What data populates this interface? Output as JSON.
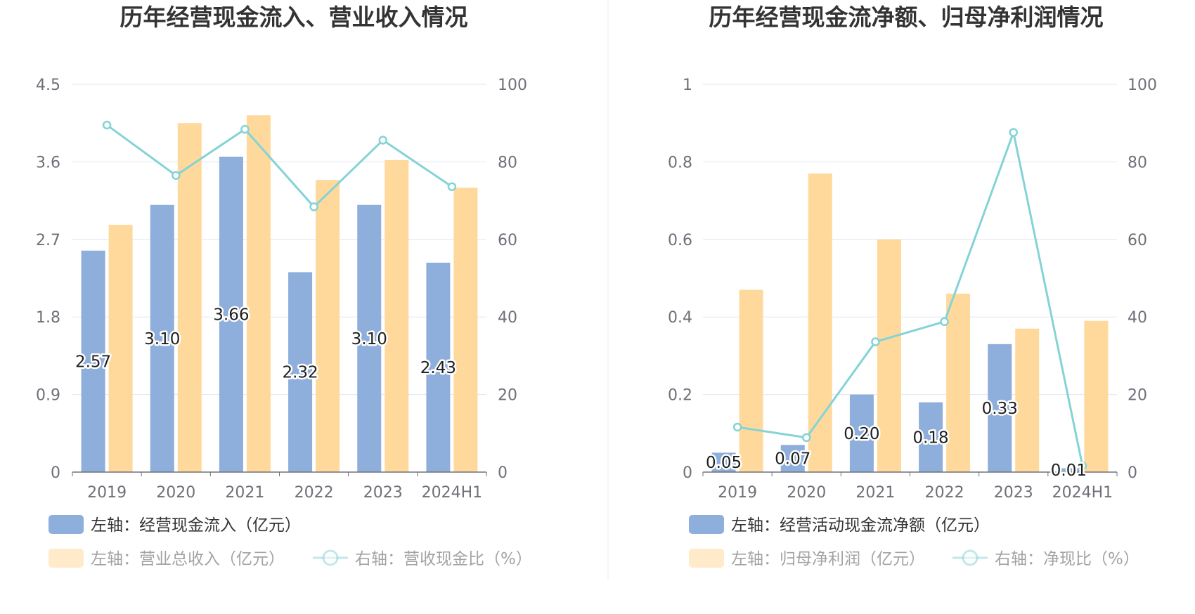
{
  "colors": {
    "bar_primary": "#8eaedb",
    "bar_secondary": "#ffd99c",
    "line": "#84d3d6",
    "grid": "#e0e6f1",
    "axis": "#6e7079",
    "title": "#333333",
    "divider": "#eeeeee"
  },
  "chart_data": [
    {
      "type": "bar+line",
      "title": "历年经营现金流入、营业收入情况",
      "categories": [
        "2019",
        "2020",
        "2021",
        "2022",
        "2023",
        "2024H1"
      ],
      "left_axis": {
        "ticks": [
          "0",
          "0.9",
          "1.8",
          "2.7",
          "3.6",
          "4.5"
        ],
        "min": 0,
        "max": 4.5
      },
      "right_axis": {
        "ticks": [
          "0",
          "20",
          "40",
          "60",
          "80",
          "100"
        ],
        "min": 0,
        "max": 100
      },
      "series": [
        {
          "name": "左轴：经营现金流入（亿元）",
          "type": "bar",
          "axis": "left",
          "values": [
            2.57,
            3.1,
            3.66,
            2.32,
            3.1,
            2.43
          ],
          "labels": [
            "2.57",
            "3.10",
            "3.66",
            "2.32",
            "3.10",
            "2.43"
          ]
        },
        {
          "name": "左轴：营业总收入（亿元）",
          "type": "bar",
          "axis": "left",
          "values": [
            2.87,
            4.05,
            4.14,
            3.39,
            3.62,
            3.3
          ]
        },
        {
          "name": "右轴：营收现金比（%）",
          "type": "line",
          "axis": "right",
          "values": [
            89.5,
            76.5,
            88.4,
            68.4,
            85.6,
            73.6
          ]
        }
      ],
      "grid": true,
      "legend_position": "bottom"
    },
    {
      "type": "bar+line",
      "title": "历年经营现金流净额、归母净利润情况",
      "categories": [
        "2019",
        "2020",
        "2021",
        "2022",
        "2023",
        "2024H1"
      ],
      "left_axis": {
        "ticks": [
          "0",
          "0.2",
          "0.4",
          "0.6",
          "0.8",
          "1"
        ],
        "min": 0,
        "max": 1
      },
      "right_axis": {
        "ticks": [
          "0",
          "20",
          "40",
          "60",
          "80",
          "100"
        ],
        "min": 0,
        "max": 100
      },
      "series": [
        {
          "name": "左轴：经营活动现金流净额（亿元）",
          "type": "bar",
          "axis": "left",
          "values": [
            0.05,
            0.07,
            0.2,
            0.18,
            0.33,
            0.01
          ],
          "labels": [
            "0.05",
            "0.07",
            "0.20",
            "0.18",
            "0.33",
            "0.01"
          ]
        },
        {
          "name": "左轴：归母净利润（亿元）",
          "type": "bar",
          "axis": "left",
          "values": [
            0.47,
            0.77,
            0.6,
            0.46,
            0.37,
            0.39
          ]
        },
        {
          "name": "右轴：净现比（%）",
          "type": "line",
          "axis": "right",
          "values": [
            11.6,
            8.9,
            33.6,
            38.8,
            87.6,
            1.6
          ]
        }
      ],
      "grid": true,
      "legend_position": "bottom"
    }
  ]
}
